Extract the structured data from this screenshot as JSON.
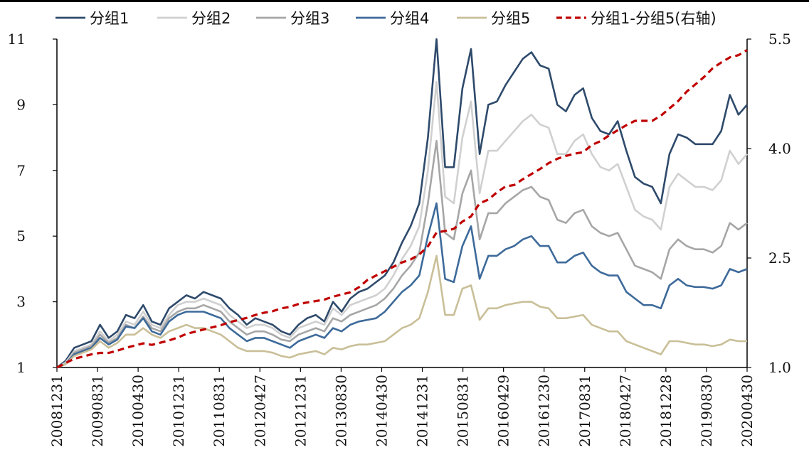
{
  "chart_data": {
    "type": "line",
    "title": "",
    "xlabel": "",
    "ylabel": "",
    "ylim": [
      1,
      11
    ],
    "y2lim": [
      1.0,
      5.5
    ],
    "yticks": [
      "1",
      "3",
      "5",
      "7",
      "9",
      "11"
    ],
    "y2ticks": [
      "1.0",
      "2.5",
      "4.0",
      "5.5"
    ],
    "x_tick_labels": [
      "20081231",
      "20090831",
      "20100430",
      "20101231",
      "20110831",
      "20120427",
      "20121231",
      "20130830",
      "20140430",
      "20141231",
      "20150831",
      "20160429",
      "20161230",
      "20170831",
      "20180427",
      "20181228",
      "20190830",
      "20200430"
    ],
    "legend_position": "top",
    "series": [
      {
        "name": "分组1",
        "color": "#2e4a6b",
        "axis": "left",
        "values": [
          1,
          1.2,
          1.6,
          1.7,
          1.8,
          2.3,
          1.9,
          2.1,
          2.6,
          2.5,
          2.9,
          2.4,
          2.3,
          2.8,
          3.0,
          3.2,
          3.1,
          3.3,
          3.2,
          3.1,
          2.8,
          2.6,
          2.3,
          2.5,
          2.4,
          2.3,
          2.1,
          2.0,
          2.3,
          2.5,
          2.6,
          2.4,
          3.0,
          2.7,
          3.1,
          3.3,
          3.4,
          3.6,
          3.8,
          4.2,
          4.8,
          5.3,
          6.0,
          8.0,
          11.0,
          7.1,
          7.1,
          9.5,
          10.7,
          7.5,
          9.0,
          9.1,
          9.6,
          10.0,
          10.4,
          10.6,
          10.2,
          10.1,
          9.0,
          8.8,
          9.3,
          9.5,
          8.6,
          8.2,
          8.1,
          8.5,
          7.6,
          6.8,
          6.6,
          6.5,
          6.0,
          7.5,
          8.1,
          8.0,
          7.8,
          7.8,
          7.8,
          8.2,
          9.3,
          8.7,
          9.0
        ]
      },
      {
        "name": "分组2",
        "color": "#d0d0d0",
        "axis": "left",
        "values": [
          1,
          1.15,
          1.5,
          1.6,
          1.7,
          2.1,
          1.8,
          2.0,
          2.4,
          2.3,
          2.7,
          2.3,
          2.2,
          2.6,
          2.9,
          3.0,
          3.0,
          3.1,
          3.0,
          2.9,
          2.6,
          2.4,
          2.2,
          2.3,
          2.3,
          2.2,
          2.0,
          1.9,
          2.2,
          2.3,
          2.4,
          2.3,
          2.8,
          2.6,
          2.9,
          3.0,
          3.1,
          3.2,
          3.4,
          3.8,
          4.3,
          4.7,
          5.3,
          7.0,
          9.7,
          6.2,
          6.0,
          8.0,
          9.1,
          6.3,
          7.6,
          7.6,
          7.9,
          8.2,
          8.5,
          8.7,
          8.4,
          8.3,
          7.5,
          7.5,
          7.9,
          8.1,
          7.5,
          7.1,
          7.0,
          7.2,
          6.5,
          5.8,
          5.6,
          5.5,
          5.2,
          6.5,
          6.9,
          6.7,
          6.5,
          6.5,
          6.4,
          6.7,
          7.6,
          7.2,
          7.5
        ]
      },
      {
        "name": "分组3",
        "color": "#a6a6a6",
        "axis": "left",
        "values": [
          1,
          1.1,
          1.45,
          1.55,
          1.65,
          2.0,
          1.75,
          1.9,
          2.3,
          2.2,
          2.55,
          2.2,
          2.1,
          2.5,
          2.7,
          2.8,
          2.8,
          2.9,
          2.8,
          2.7,
          2.4,
          2.2,
          2.0,
          2.1,
          2.1,
          2.0,
          1.85,
          1.8,
          2.0,
          2.1,
          2.2,
          2.1,
          2.5,
          2.4,
          2.6,
          2.7,
          2.8,
          2.9,
          3.1,
          3.4,
          3.8,
          4.1,
          4.5,
          6.0,
          7.9,
          5.1,
          4.9,
          6.3,
          7.0,
          4.9,
          5.7,
          5.7,
          6.0,
          6.2,
          6.4,
          6.5,
          6.2,
          6.1,
          5.5,
          5.4,
          5.7,
          5.8,
          5.3,
          5.1,
          5.0,
          5.1,
          4.6,
          4.1,
          4.0,
          3.9,
          3.7,
          4.6,
          4.9,
          4.7,
          4.6,
          4.6,
          4.5,
          4.7,
          5.4,
          5.2,
          5.4
        ]
      },
      {
        "name": "分组4",
        "color": "#3d6a9a",
        "axis": "left",
        "values": [
          1,
          1.1,
          1.4,
          1.5,
          1.6,
          1.9,
          1.7,
          1.85,
          2.25,
          2.2,
          2.5,
          2.1,
          2.0,
          2.4,
          2.6,
          2.7,
          2.7,
          2.7,
          2.6,
          2.5,
          2.2,
          2.0,
          1.8,
          1.9,
          1.9,
          1.8,
          1.7,
          1.6,
          1.8,
          1.9,
          2.0,
          1.9,
          2.2,
          2.1,
          2.3,
          2.4,
          2.45,
          2.5,
          2.7,
          3.0,
          3.3,
          3.5,
          3.8,
          5.0,
          6.0,
          3.7,
          3.6,
          4.7,
          5.3,
          3.7,
          4.4,
          4.4,
          4.6,
          4.7,
          4.9,
          5.0,
          4.7,
          4.7,
          4.2,
          4.2,
          4.4,
          4.5,
          4.1,
          3.9,
          3.8,
          3.8,
          3.3,
          3.1,
          2.9,
          2.9,
          2.8,
          3.5,
          3.7,
          3.5,
          3.45,
          3.45,
          3.4,
          3.5,
          4.0,
          3.9,
          4.0
        ]
      },
      {
        "name": "分组5",
        "color": "#c9bf98",
        "axis": "left",
        "values": [
          1,
          1.1,
          1.35,
          1.45,
          1.55,
          1.8,
          1.6,
          1.75,
          2.0,
          2.0,
          2.2,
          2.0,
          1.9,
          2.1,
          2.2,
          2.3,
          2.2,
          2.2,
          2.1,
          2.0,
          1.8,
          1.6,
          1.5,
          1.5,
          1.5,
          1.45,
          1.35,
          1.3,
          1.4,
          1.45,
          1.5,
          1.4,
          1.6,
          1.55,
          1.65,
          1.7,
          1.7,
          1.75,
          1.8,
          2.0,
          2.2,
          2.3,
          2.5,
          3.3,
          4.4,
          2.6,
          2.6,
          3.4,
          3.5,
          2.45,
          2.8,
          2.8,
          2.9,
          2.95,
          3.0,
          3.0,
          2.85,
          2.8,
          2.5,
          2.5,
          2.55,
          2.6,
          2.3,
          2.2,
          2.1,
          2.1,
          1.8,
          1.7,
          1.6,
          1.5,
          1.4,
          1.8,
          1.8,
          1.75,
          1.7,
          1.7,
          1.65,
          1.7,
          1.85,
          1.8,
          1.8
        ]
      },
      {
        "name": "分组1-分组5(右轴)",
        "color": "#c00000",
        "axis": "right",
        "dashed": true,
        "values": [
          1.0,
          1.06,
          1.12,
          1.15,
          1.18,
          1.2,
          1.2,
          1.23,
          1.27,
          1.3,
          1.33,
          1.31,
          1.34,
          1.37,
          1.41,
          1.46,
          1.49,
          1.52,
          1.55,
          1.58,
          1.62,
          1.65,
          1.68,
          1.72,
          1.75,
          1.77,
          1.81,
          1.83,
          1.87,
          1.89,
          1.91,
          1.93,
          1.97,
          2.0,
          2.03,
          2.1,
          2.2,
          2.26,
          2.32,
          2.38,
          2.44,
          2.48,
          2.55,
          2.66,
          2.85,
          2.87,
          2.9,
          3.0,
          3.07,
          3.25,
          3.3,
          3.4,
          3.48,
          3.5,
          3.58,
          3.65,
          3.72,
          3.8,
          3.86,
          3.9,
          3.93,
          3.95,
          4.05,
          4.1,
          4.18,
          4.25,
          4.32,
          4.38,
          4.38,
          4.38,
          4.45,
          4.55,
          4.65,
          4.78,
          4.88,
          4.98,
          5.1,
          5.18,
          5.25,
          5.28,
          5.35
        ]
      }
    ]
  }
}
